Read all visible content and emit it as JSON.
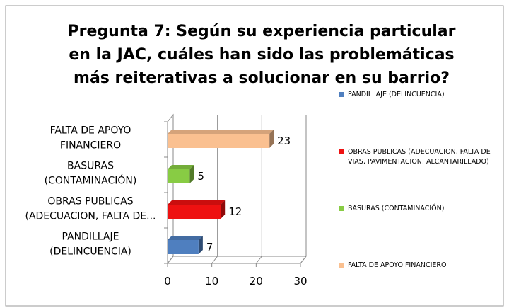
{
  "chart_data": {
    "type": "bar3d_horizontal",
    "title": "Pregunta 7: Según su experiencia particular en la JAC, cuáles han sido las problemáticas más reiterativas a solucionar en su barrio?",
    "categories": [
      "PANDILLAJE (DELINCUENCIA)",
      "OBRAS PUBLICAS (ADECUACION, FALTA DE...",
      "BASURAS (CONTAMINACIÓN)",
      "FALTA DE APOYO FINANCIERO"
    ],
    "series": [
      {
        "name": "PANDILLAJE (DELINCUENCIA)",
        "color": "#4f7fbf",
        "values": [
          7,
          null,
          null,
          null
        ]
      },
      {
        "name": "OBRAS PUBLICAS (ADECUACION, FALTA DE VIAS, PAVIMENTACION, ALCANTARILLADO)",
        "color": "#ee1111",
        "values": [
          null,
          12,
          null,
          null
        ]
      },
      {
        "name": "BASURAS (CONTAMINACIÓN)",
        "color": "#88cc44",
        "values": [
          null,
          null,
          5,
          null
        ]
      },
      {
        "name": "FALTA DE APOYO FINANCIERO",
        "color": "#fac090",
        "values": [
          null,
          null,
          null,
          23
        ]
      }
    ],
    "xlim": [
      0,
      30
    ],
    "xticks": [
      0,
      10,
      20,
      30
    ],
    "grid": true,
    "legend": "right"
  }
}
